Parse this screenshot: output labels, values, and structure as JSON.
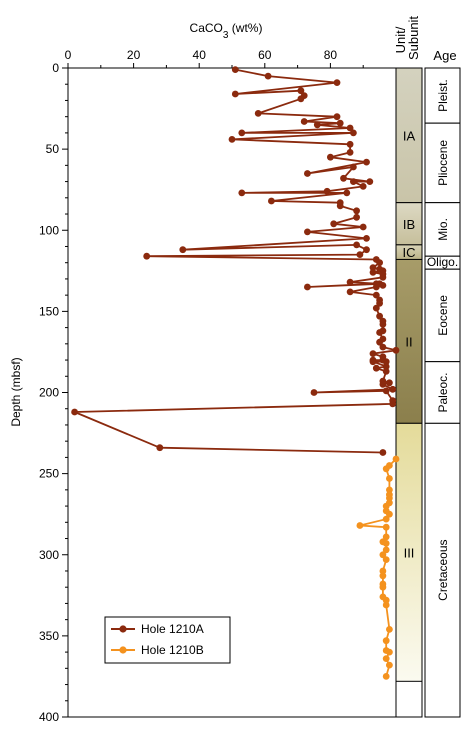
{
  "chart_data": {
    "type": "line",
    "x_axis": {
      "label_main": "CaCO",
      "label_sub": "3",
      "label_unit": " (wt%)",
      "range": [
        0,
        100
      ],
      "ticks": [
        "0",
        "20",
        "40",
        "60",
        "80"
      ],
      "color": "#8B2A0E"
    },
    "y_axis": {
      "label": "Depth (mbsf)",
      "range": [
        0,
        400
      ],
      "inverted": true,
      "ticks": [
        "0",
        "50",
        "100",
        "150",
        "200",
        "250",
        "300",
        "350",
        "400"
      ]
    },
    "legend": {
      "placement": "bottom-left"
    },
    "series": [
      {
        "name": "Hole 1210A",
        "color": "#8B2A0E",
        "points": [
          [
            51,
            1
          ],
          [
            61,
            5
          ],
          [
            82,
            9
          ],
          [
            51,
            16
          ],
          [
            71,
            14
          ],
          [
            72,
            17
          ],
          [
            71,
            19
          ],
          [
            58,
            28
          ],
          [
            82,
            30
          ],
          [
            72,
            33
          ],
          [
            83,
            34
          ],
          [
            76,
            35
          ],
          [
            86,
            37
          ],
          [
            53,
            40
          ],
          [
            87,
            40
          ],
          [
            50,
            44
          ],
          [
            86,
            47
          ],
          [
            86,
            52
          ],
          [
            80,
            55
          ],
          [
            91,
            58
          ],
          [
            73,
            65
          ],
          [
            87,
            61
          ],
          [
            84,
            68
          ],
          [
            92,
            70
          ],
          [
            87,
            70
          ],
          [
            90,
            73
          ],
          [
            79,
            76
          ],
          [
            53,
            77
          ],
          [
            85,
            77
          ],
          [
            62,
            82
          ],
          [
            83,
            83
          ],
          [
            83,
            85
          ],
          [
            88,
            88
          ],
          [
            88,
            92
          ],
          [
            81,
            96
          ],
          [
            90,
            98
          ],
          [
            73,
            101
          ],
          [
            91,
            105
          ],
          [
            35,
            112
          ],
          [
            88,
            109
          ],
          [
            91,
            112
          ],
          [
            89,
            115
          ],
          [
            24,
            116
          ],
          [
            94,
            118
          ],
          [
            95,
            120
          ],
          [
            93,
            123
          ],
          [
            95,
            124
          ],
          [
            96,
            125
          ],
          [
            93,
            126
          ],
          [
            96,
            127
          ],
          [
            96,
            129
          ],
          [
            86,
            132
          ],
          [
            95,
            133
          ],
          [
            73,
            135
          ],
          [
            94,
            133
          ],
          [
            96,
            134
          ],
          [
            94,
            135
          ],
          [
            86,
            138
          ],
          [
            94,
            140
          ],
          [
            95,
            143
          ],
          [
            95,
            145
          ],
          [
            94,
            148
          ],
          [
            95,
            153
          ],
          [
            96,
            156
          ],
          [
            96,
            158
          ],
          [
            96,
            162
          ],
          [
            95,
            163
          ],
          [
            96,
            167
          ],
          [
            95,
            169
          ],
          [
            96,
            172
          ],
          [
            100,
            174
          ],
          [
            93,
            176
          ],
          [
            96,
            178
          ],
          [
            96,
            180
          ],
          [
            93,
            180
          ],
          [
            97,
            181
          ],
          [
            93,
            181
          ],
          [
            97,
            184
          ],
          [
            94,
            185
          ],
          [
            97,
            187
          ],
          [
            96,
            193
          ],
          [
            98,
            194
          ],
          [
            96,
            195
          ],
          [
            99,
            198
          ],
          [
            75,
            200
          ],
          [
            97,
            199
          ],
          [
            99,
            205
          ],
          [
            99,
            207
          ],
          [
            2,
            212
          ],
          [
            28,
            234
          ],
          [
            96,
            237
          ]
        ]
      },
      {
        "name": "Hole 1210B",
        "color": "#F4921E",
        "points": [
          [
            100,
            241
          ],
          [
            98,
            245
          ],
          [
            97,
            247
          ],
          [
            98,
            253
          ],
          [
            98,
            260
          ],
          [
            98,
            263
          ],
          [
            98,
            265
          ],
          [
            98,
            268
          ],
          [
            97,
            270
          ],
          [
            97,
            273
          ],
          [
            98,
            275
          ],
          [
            97,
            278
          ],
          [
            89,
            282
          ],
          [
            97,
            283
          ],
          [
            97,
            289
          ],
          [
            96,
            292
          ],
          [
            97,
            293
          ],
          [
            97,
            297
          ],
          [
            96,
            300
          ],
          [
            97,
            303
          ],
          [
            96,
            310
          ],
          [
            96,
            313
          ],
          [
            96,
            318
          ],
          [
            96,
            320
          ],
          [
            96,
            326
          ],
          [
            97,
            328
          ],
          [
            97,
            331
          ],
          [
            98,
            346
          ],
          [
            97,
            353
          ],
          [
            97,
            359
          ],
          [
            98,
            360
          ],
          [
            97,
            364
          ],
          [
            98,
            368
          ],
          [
            97,
            375
          ]
        ]
      }
    ],
    "unit_column": {
      "header_line1": "Unit/",
      "header_line2": "Subunit",
      "units": [
        {
          "label": "IA",
          "top": 0,
          "bottom": 83,
          "color_top": "#d4d2bf",
          "color_bottom": "#c9c4a8"
        },
        {
          "label": "IB",
          "top": 83,
          "bottom": 109,
          "color_top": "#ddd9c4",
          "color_bottom": "#c6bf9b"
        },
        {
          "label": "IC",
          "top": 109,
          "bottom": 118,
          "color_top": "#d8d3b6",
          "color_bottom": "#bcb488"
        },
        {
          "label": "II",
          "top": 118,
          "bottom": 219,
          "color_top": "#a79c69",
          "color_bottom": "#8b7f4c"
        },
        {
          "label": "III",
          "top": 219,
          "bottom": 378,
          "color_top": "#e4db9a",
          "color_bottom": "#fbfaf0"
        }
      ]
    },
    "age_column": {
      "header": "Age",
      "ages": [
        {
          "label": "Pleist.",
          "top": 0,
          "bottom": 34
        },
        {
          "label": "Pliocene",
          "top": 34,
          "bottom": 83
        },
        {
          "label": "Mio.",
          "top": 83,
          "bottom": 116
        },
        {
          "label": "Oligo.",
          "top": 116,
          "bottom": 124
        },
        {
          "label": "Eocene",
          "top": 124,
          "bottom": 181
        },
        {
          "label": "Paleoc.",
          "top": 181,
          "bottom": 219
        },
        {
          "label": "Cretaceous",
          "top": 219,
          "bottom": 400
        }
      ]
    }
  }
}
